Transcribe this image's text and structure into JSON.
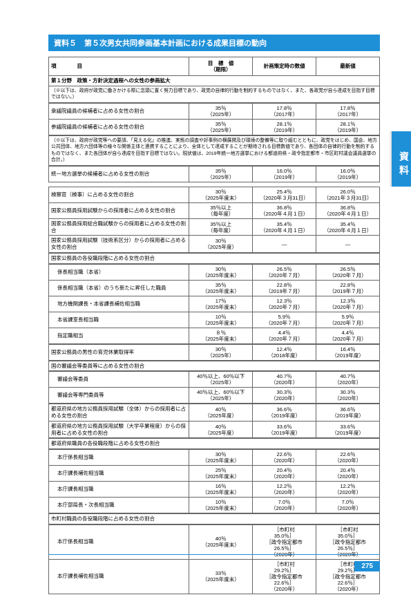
{
  "title": "資料５　第５次男女共同参画基本計画における成果目標の動向",
  "sideTab": "資料",
  "pageNum": "275",
  "headers": {
    "item": "項　　　　目",
    "target": "目　標　値\n（期限）",
    "planTime": "計画策定時の数値",
    "latest": "最新値"
  },
  "section1Title": "第１分野　政策・方針決定過程への女性の参画拡大",
  "note1": "（※以下は、政府が政党に働きかける際に念頭に置く努力目標であり、政党の自律的行動を制約するものではなく、また、各政党が自ら達成を目指す目標ではない。）",
  "note2": "（※以下は、政府が政党等への要請、「見える化」の推進、実態の調査や好事例の横展開及び環境の整備等に取り組むとともに、政党をはじめ、国会、地方公共団体、地方六団体等の様々な関係主体と連携することにより、全体として達成することが期待される目標数値であり、各団体の自律的行動を制約するものではなく、また各団体が自ら達成を目指す目標ではない。現状値は、2019年統一地方選挙における都道府県・政令指定都市・市区町村議会議員選挙の合計。）",
  "rows": [
    {
      "item": "衆議院議員の候補者に占める女性の割合",
      "c1": "35％\n（2025年）",
      "c2": "17.8％\n（2017年）",
      "c3": "17.8％\n（2017年）"
    },
    {
      "item": "参議院議員の候補者に占める女性の割合",
      "c1": "35％\n（2025年）",
      "c2": "28.1％\n（2019年）",
      "c3": "28.1％\n（2019年）"
    }
  ],
  "row3": {
    "item": "統一地方選挙の候補者に占める女性の割合",
    "c1": "35％\n（2025年）",
    "c2": "16.0％\n（2019年）",
    "c3": "16.0％\n（2019年）"
  },
  "group2": [
    {
      "item": "検察官（検事）に占める女性の割合",
      "c1": "30％\n（2025年度末）",
      "c2": "25.4％\n（2020年３月31日）",
      "c3": "26.0％\n（2021年３月31日）"
    },
    {
      "item": "国家公務員採用試験からの採用者に占める女性の割合",
      "c1": "35％以上\n（毎年度）",
      "c2": "36.8％\n（2020年４月１日）",
      "c3": "36.8％\n（2020年４月１日）"
    },
    {
      "item": "国家公務員採用総合職試験からの採用者に占める女性の割合",
      "c1": "35％以上\n（毎年度）",
      "c2": "35.4％\n（2020年４月１日）",
      "c3": "35.4％\n（2020年４月１日）"
    },
    {
      "item": "国家公務員採用試験（技術系区分）からの採用者に占める女性の割合",
      "c1": "30％\n（2025年度）",
      "c2": "—",
      "c3": "—"
    }
  ],
  "subHeader1": "国家公務員の各役職段階に占める女性の割合",
  "group3": [
    {
      "item": "係長相当職（本省）",
      "indent": true,
      "c1": "30％\n（2025年度末）",
      "c2": "26.5％\n（2020年７月）",
      "c3": "26.5％\n（2020年７月）"
    },
    {
      "item": "係長相当職（本省）のうち新たに昇任した職員",
      "indent": true,
      "c1": "35％\n（2025年度末）",
      "c2": "22.8％\n（2019年７月）",
      "c3": "22.8％\n（2019年７月）"
    },
    {
      "item": "地方機関課長・本省課長補佐相当職",
      "indent": true,
      "c1": "17％\n（2025年度末）",
      "c2": "12.3％\n（2020年７月）",
      "c3": "12.3％\n（2020年７月）"
    },
    {
      "item": "本省課室長相当職",
      "indent": true,
      "c1": "10％\n（2025年度末）",
      "c2": "5.9％\n（2020年７月）",
      "c3": "5.9％\n（2020年７月）"
    },
    {
      "item": "指定職相当",
      "indent": true,
      "c1": "８％\n（2025年度末）",
      "c2": "4.4％\n（2020年７月）",
      "c3": "4.4％\n（2020年７月）"
    }
  ],
  "row4": {
    "item": "国家公務員の男性の育児休業取得率",
    "c1": "30％\n（2025年）",
    "c2": "12.4％\n（2018年度）",
    "c3": "16.4％\n（2019年度）"
  },
  "subHeader2": "国の審議会等委員等に占める女性の割合",
  "group4": [
    {
      "item": "審議会等委員",
      "indent": true,
      "c1": "40％以上、60％以下\n（2025年）",
      "c2": "40.7％\n（2020年）",
      "c3": "40.7％\n（2020年）"
    },
    {
      "item": "審議会等専門委員等",
      "indent": true,
      "c1": "40％以上、60％以下\n（2025年）",
      "c2": "30.3％\n（2020年）",
      "c3": "30.3％\n（2020年）"
    }
  ],
  "group5": [
    {
      "item": "都道府県の地方公務員採用試験（全体）からの採用者に占める女性の割合",
      "c1": "40％\n（2025年度）",
      "c2": "36.6％\n（2019年度）",
      "c3": "36.6％\n（2019年度）"
    },
    {
      "item": "都道府県の地方公務員採用試験（大学卒業程度）からの採用者に占める女性の割合",
      "c1": "40％\n（2025年度）",
      "c2": "33.6％\n（2019年度）",
      "c3": "33.6％\n（2019年度）"
    }
  ],
  "subHeader3": "都道府県職員の各役職段階に占める女性の割合",
  "group6": [
    {
      "item": "本庁係長相当職",
      "indent": true,
      "c1": "30％\n（2025年度末）",
      "c2": "22.6％\n（2020年）",
      "c3": "22.6％\n（2020年）"
    },
    {
      "item": "本庁課長補佐相当職",
      "indent": true,
      "c1": "25％\n（2025年度末）",
      "c2": "20.4％\n（2020年）",
      "c3": "20.4％\n（2020年）"
    },
    {
      "item": "本庁課長相当職",
      "indent": true,
      "c1": "16％\n（2025年度末）",
      "c2": "12.2％\n（2020年）",
      "c3": "12.2％\n（2020年）"
    },
    {
      "item": "本庁部局長・次長相当職",
      "indent": true,
      "c1": "10％\n（2025年度末）",
      "c2": "7.0％\n（2020年）",
      "c3": "7.0％\n（2020年）"
    }
  ],
  "subHeader4": "市町村職員の各役職段階に占める女性の割合",
  "group7": [
    {
      "item": "本庁係長相当職",
      "indent": true,
      "c1": "40％\n（2025年度末）",
      "c2": "［市町村　　　　35.0％］\n［政令指定都市　26.5％］\n（2020年）",
      "c3": "［市町村　　　　35.0％］\n［政令指定都市　26.5％］\n（2020年）"
    },
    {
      "item": "本庁課長補佐相当職",
      "indent": true,
      "c1": "33％\n（2025年度末）",
      "c2": "［市町村　　　　29.2％］\n［政令指定都市　22.6％］\n（2020年）",
      "c3": "［市町村　　　　29.2％］\n［政令指定都市　22.6％］\n（2020年）"
    }
  ]
}
